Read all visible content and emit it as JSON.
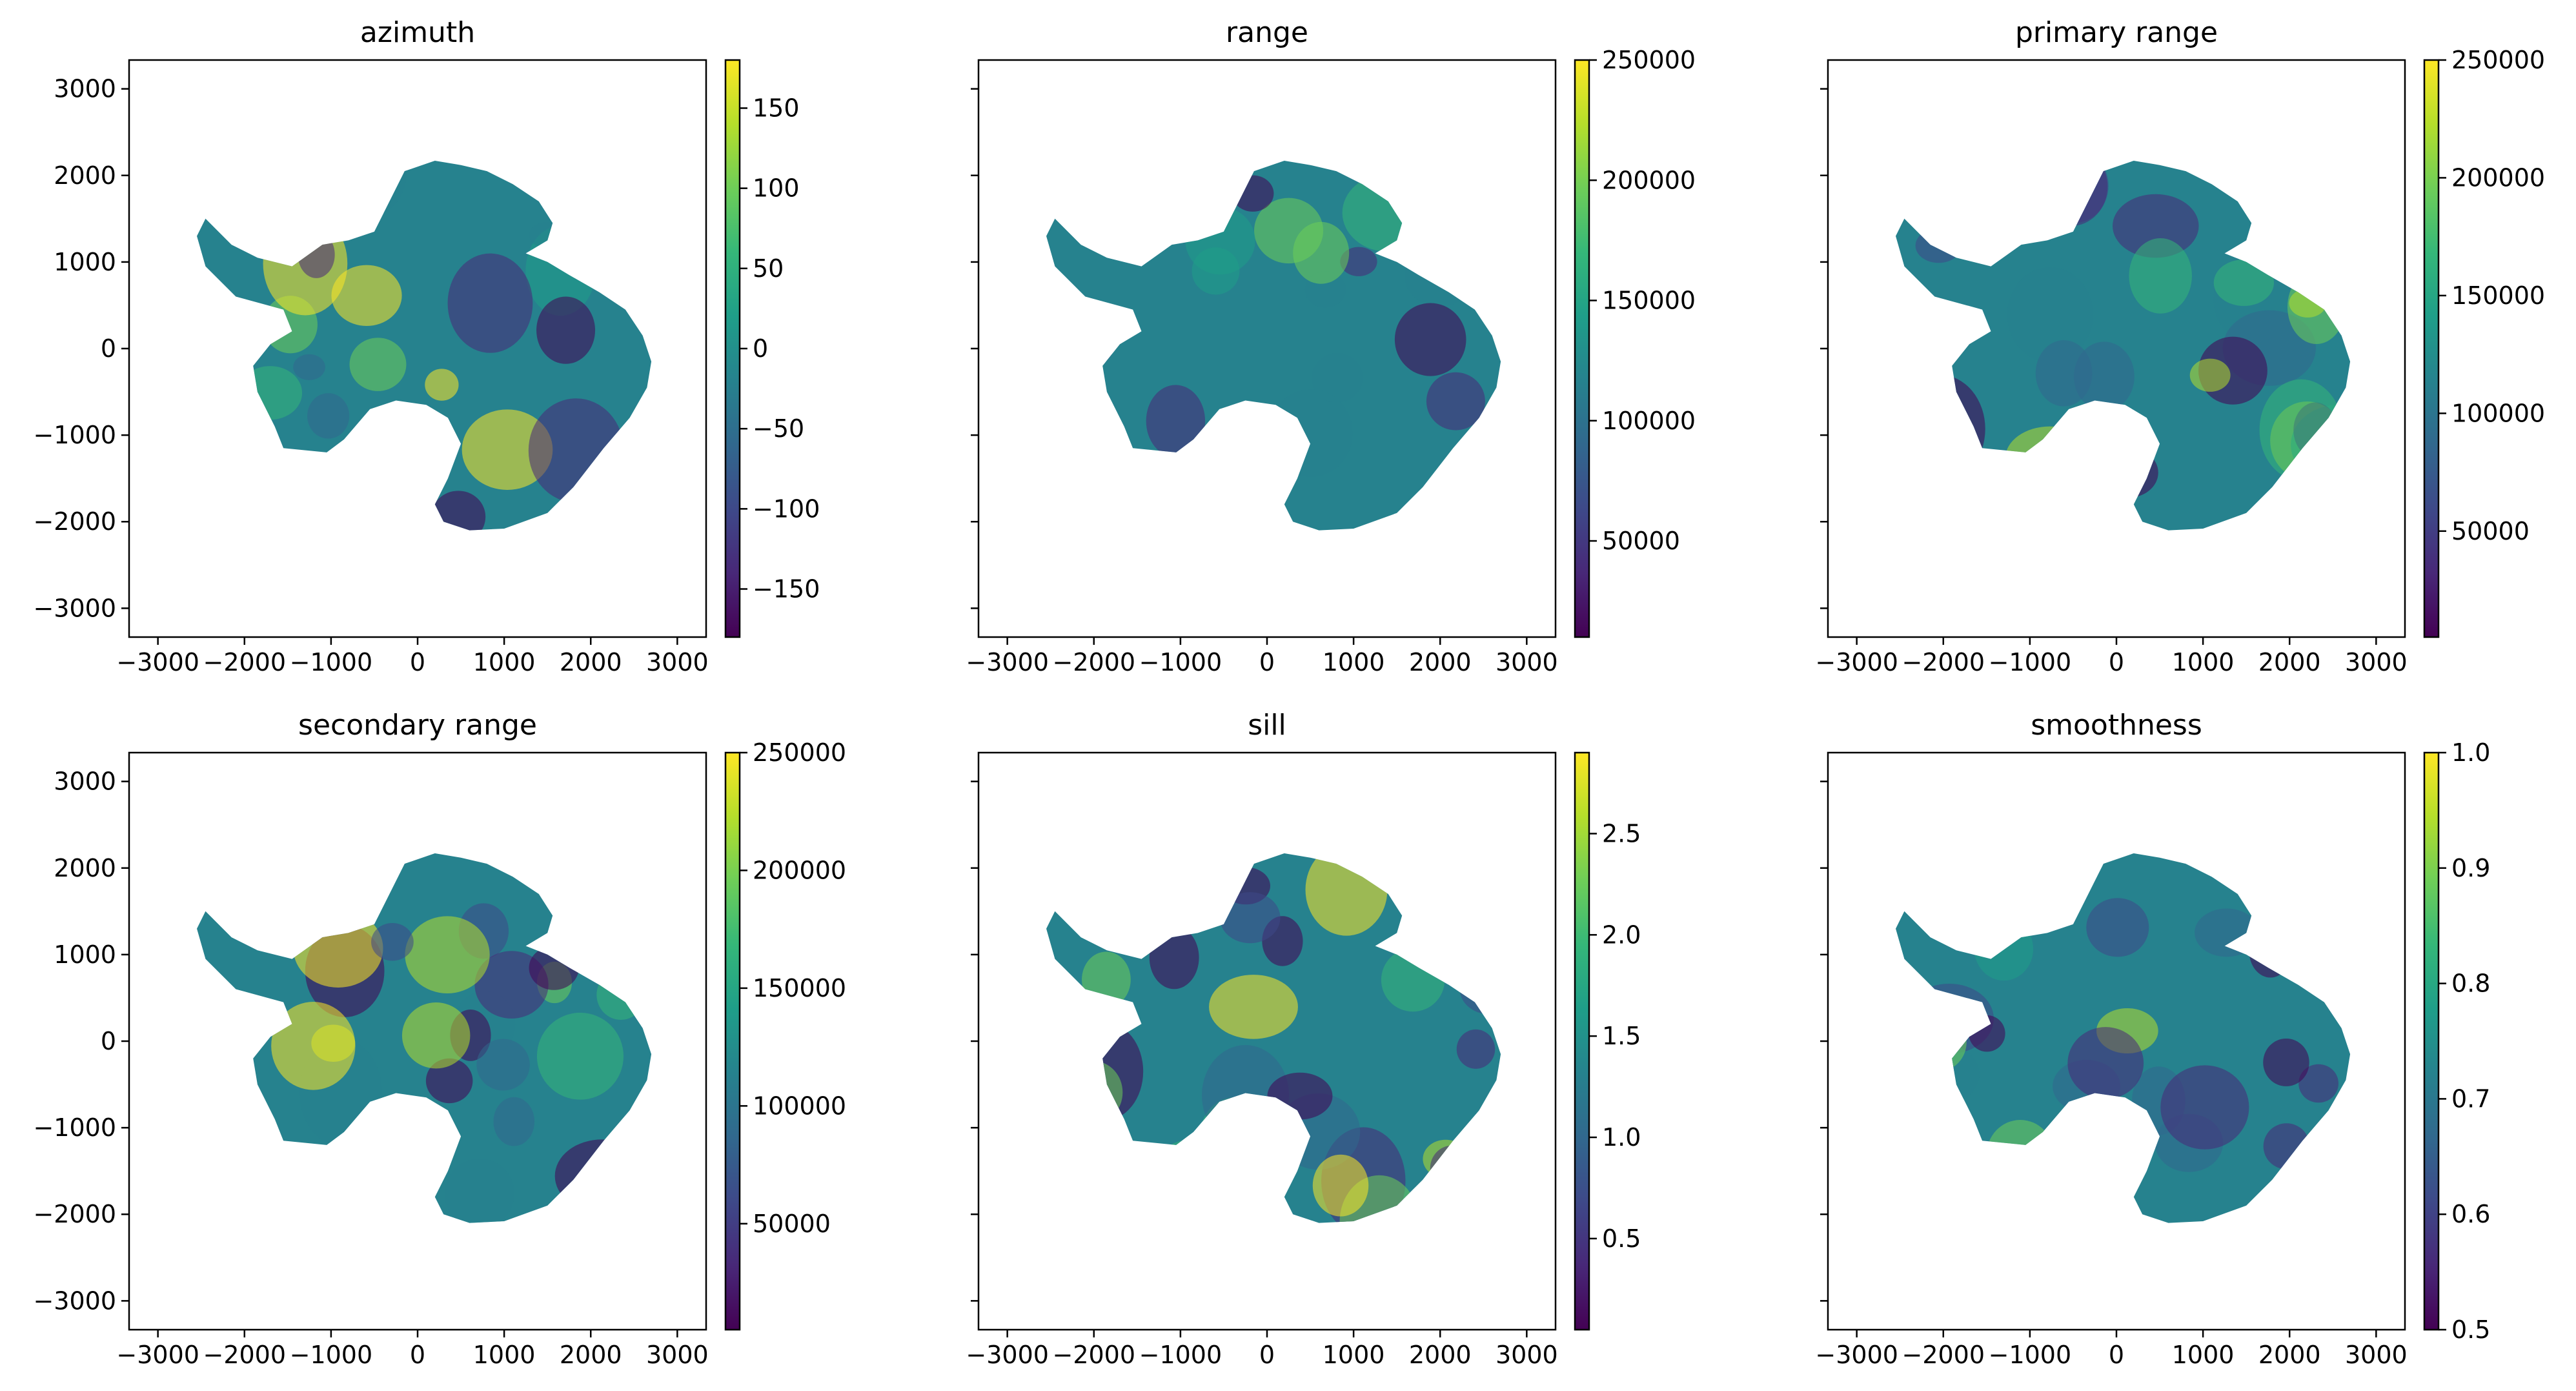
{
  "colormap": {
    "name": "viridis",
    "stops": [
      "#440154",
      "#482878",
      "#3e4989",
      "#31688e",
      "#26828e",
      "#1f9e89",
      "#35b779",
      "#6ece58",
      "#b5de2b",
      "#fde725"
    ]
  },
  "shared_axis": {
    "xlim": [
      -3333,
      3333
    ],
    "ylim": [
      -3333,
      3333
    ],
    "x_ticks": [
      "−3000",
      "−2000",
      "−1000",
      "0",
      "1000",
      "2000",
      "3000"
    ],
    "y_ticks": [
      "3000",
      "2000",
      "1000",
      "0",
      "−1000",
      "−2000",
      "−3000"
    ]
  },
  "chart_data": [
    {
      "type": "heatmap",
      "title": "azimuth",
      "xlabel": "",
      "ylabel": "",
      "clim": [
        -180,
        180
      ],
      "colorbar_ticks": [
        {
          "value": 150,
          "label": "150"
        },
        {
          "value": 100,
          "label": "100"
        },
        {
          "value": 50,
          "label": "50"
        },
        {
          "value": 0,
          "label": "0"
        },
        {
          "value": -50,
          "label": "−50"
        },
        {
          "value": -100,
          "label": "−100"
        },
        {
          "value": -150,
          "label": "−150"
        }
      ],
      "show_y_tick_labels": true
    },
    {
      "type": "heatmap",
      "title": "range",
      "xlabel": "",
      "ylabel": "",
      "clim": [
        10000,
        250000
      ],
      "colorbar_ticks": [
        {
          "value": 250000,
          "label": "250000"
        },
        {
          "value": 200000,
          "label": "200000"
        },
        {
          "value": 150000,
          "label": "150000"
        },
        {
          "value": 100000,
          "label": "100000"
        },
        {
          "value": 50000,
          "label": "50000"
        }
      ],
      "show_y_tick_labels": false
    },
    {
      "type": "heatmap",
      "title": "primary range",
      "xlabel": "",
      "ylabel": "",
      "clim": [
        5000,
        250000
      ],
      "colorbar_ticks": [
        {
          "value": 250000,
          "label": "250000"
        },
        {
          "value": 200000,
          "label": "200000"
        },
        {
          "value": 150000,
          "label": "150000"
        },
        {
          "value": 100000,
          "label": "100000"
        },
        {
          "value": 50000,
          "label": "50000"
        }
      ],
      "show_y_tick_labels": false
    },
    {
      "type": "heatmap",
      "title": "secondary range",
      "xlabel": "",
      "ylabel": "",
      "clim": [
        5000,
        250000
      ],
      "colorbar_ticks": [
        {
          "value": 250000,
          "label": "250000"
        },
        {
          "value": 200000,
          "label": "200000"
        },
        {
          "value": 150000,
          "label": "150000"
        },
        {
          "value": 100000,
          "label": "100000"
        },
        {
          "value": 50000,
          "label": "50000"
        }
      ],
      "show_y_tick_labels": true
    },
    {
      "type": "heatmap",
      "title": "sill",
      "xlabel": "",
      "ylabel": "",
      "clim": [
        0.05,
        2.9
      ],
      "colorbar_ticks": [
        {
          "value": 2.5,
          "label": "2.5"
        },
        {
          "value": 2.0,
          "label": "2.0"
        },
        {
          "value": 1.5,
          "label": "1.5"
        },
        {
          "value": 1.0,
          "label": "1.0"
        },
        {
          "value": 0.5,
          "label": "0.5"
        }
      ],
      "show_y_tick_labels": false
    },
    {
      "type": "heatmap",
      "title": "smoothness",
      "xlabel": "",
      "ylabel": "",
      "clim": [
        0.5,
        1.0
      ],
      "colorbar_ticks": [
        {
          "value": 1.0,
          "label": "1.0"
        },
        {
          "value": 0.9,
          "label": "0.9"
        },
        {
          "value": 0.8,
          "label": "0.8"
        },
        {
          "value": 0.7,
          "label": "0.7"
        },
        {
          "value": 0.6,
          "label": "0.6"
        },
        {
          "value": 0.5,
          "label": "0.5"
        }
      ],
      "show_y_tick_labels": false
    }
  ]
}
